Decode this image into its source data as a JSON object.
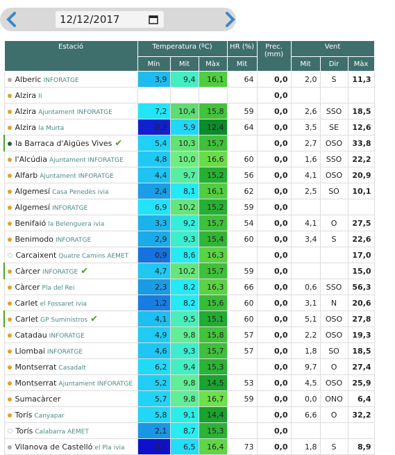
{
  "date": "12/12/2017",
  "headers": {
    "station": "Estació",
    "temperature": "Temperatura (ºC)",
    "hr": "HR (%)",
    "prec": "Prec. (mm)",
    "wind": "Vent"
  },
  "subheaders": {
    "t_min": "Mín",
    "t_mit": "Mit",
    "t_max": "Màx",
    "hr_mit": "Mit",
    "w_mit": "Mit",
    "w_dir": "Dir",
    "w_max": "Màx"
  },
  "rows": [
    {
      "station": "Alberic",
      "place": "INFORATGE",
      "dot": "#aaaaaa",
      "min": "3,9",
      "mit": "9,4",
      "max": "16,1",
      "hr": "64",
      "prec": "0,0",
      "wmit": "2,0",
      "dir": "S",
      "wmax": "11,3"
    },
    {
      "station": "Alzira",
      "place": "II",
      "dot": "#e0a030",
      "min": null,
      "mit": null,
      "max": null,
      "hr": null,
      "prec": "0,0",
      "wmit": null,
      "dir": null,
      "wmax": null
    },
    {
      "station": "Alzira",
      "place": "Ajuntament INFORATGE",
      "dot": "#e0a030",
      "min": "7,2",
      "mit": "10,4",
      "max": "15,8",
      "hr": "59",
      "prec": "0,0",
      "wmit": "2,6",
      "dir": "SSO",
      "wmax": "18,5"
    },
    {
      "station": "Alzira",
      "place": "la Murta",
      "dot": "#e0a030",
      "min": "-0,2",
      "mit": "5,9",
      "max": "12,4",
      "hr": "64",
      "prec": "0,0",
      "wmit": "3,5",
      "dir": "SE",
      "wmax": "12,6"
    },
    {
      "station": "la Barraca d'Aigües Vives",
      "place": null,
      "dot": "#1d5c55",
      "check": true,
      "min": "5,4",
      "mit": "10,3",
      "max": "15,7",
      "hr": null,
      "prec": "0,0",
      "wmit": "2,7",
      "dir": "OSO",
      "wmax": "33,8"
    },
    {
      "station": "l'Alcúdia",
      "place": "Ajuntament INFORATGE",
      "dot": "#e0a030",
      "min": "4,8",
      "mit": "10,0",
      "max": "16,6",
      "hr": "60",
      "prec": "0,0",
      "wmit": "1,6",
      "dir": "SSO",
      "wmax": "22,2"
    },
    {
      "station": "Alfarb",
      "place": "Ajuntament INFORATGE",
      "dot": "#e0a030",
      "min": "4,4",
      "mit": "9,7",
      "max": "15,2",
      "hr": "56",
      "prec": "0,0",
      "wmit": "4,1",
      "dir": "OSO",
      "wmax": "20,9"
    },
    {
      "station": "Algemesí",
      "place": "Casa Penedès ivia",
      "dot": "#e0a030",
      "min": "2,4",
      "mit": "8,1",
      "max": "16,1",
      "hr": "62",
      "prec": "0,0",
      "wmit": "2,5",
      "dir": "SO",
      "wmax": "10,1"
    },
    {
      "station": "Algemesí",
      "place": "INFORATGE",
      "dot": "#e0a030",
      "min": "6,9",
      "mit": "10,2",
      "max": "15,2",
      "hr": "59",
      "prec": "0,0",
      "wmit": null,
      "dir": null,
      "wmax": null
    },
    {
      "station": "Benifaió",
      "place": "la Belenguera ivia",
      "dot": "#e0a030",
      "min": "3,3",
      "mit": "9,2",
      "max": "15,7",
      "hr": "54",
      "prec": "0,0",
      "wmit": "4,1",
      "dir": "O",
      "wmax": "27,5"
    },
    {
      "station": "Benimodo",
      "place": "INFORATGE",
      "dot": "#e0a030",
      "min": "2,9",
      "mit": "9,3",
      "max": "15,4",
      "hr": "60",
      "prec": "0,0",
      "wmit": "3,4",
      "dir": "S",
      "wmax": "22,6"
    },
    {
      "station": "Carcaixent",
      "place": "Quatre Camins AEMET",
      "dot": "open",
      "min": "0,9",
      "mit": "8,6",
      "max": "16,3",
      "hr": null,
      "prec": "0,0",
      "wmit": null,
      "dir": null,
      "wmax": "17,0"
    },
    {
      "station": "Càrcer",
      "place": "INFORATGE",
      "dot": "#e0a030",
      "check": true,
      "min": "4,7",
      "mit": "10,2",
      "max": "15,7",
      "hr": "59",
      "prec": "0,0",
      "wmit": null,
      "dir": null,
      "wmax": "15,0"
    },
    {
      "station": "Càrcer",
      "place": "Pla del Rei",
      "dot": "#e0a030",
      "min": "2,3",
      "mit": "8,2",
      "max": "16,3",
      "hr": "66",
      "prec": "0,0",
      "wmit": "0,6",
      "dir": "SSO",
      "wmax": "56,3"
    },
    {
      "station": "Carlet",
      "place": "el Fossaret ivia",
      "dot": "#e0a030",
      "min": "1,2",
      "mit": "8,2",
      "max": "15,6",
      "hr": "60",
      "prec": "0,0",
      "wmit": "3,1",
      "dir": "N",
      "wmax": "20,6"
    },
    {
      "station": "Carlet",
      "place": "GP Suministros",
      "dot": "#e0a030",
      "check": true,
      "min": "4,1",
      "mit": "9,5",
      "max": "15,1",
      "hr": "60",
      "prec": "0,0",
      "wmit": "5,1",
      "dir": "OSO",
      "wmax": "27,8"
    },
    {
      "station": "Catadau",
      "place": "INFORATGE",
      "dot": "#e0a030",
      "min": "4,9",
      "mit": "9,8",
      "max": "15,8",
      "hr": "57",
      "prec": "0,0",
      "wmit": "2,2",
      "dir": "OSO",
      "wmax": "19,3"
    },
    {
      "station": "Llombai",
      "place": "INFORATGE",
      "dot": "#e0a030",
      "min": "4,6",
      "mit": "9,3",
      "max": "15,7",
      "hr": "57",
      "prec": "0,0",
      "wmit": "1,8",
      "dir": "SO",
      "wmax": "18,5"
    },
    {
      "station": "Montserrat",
      "place": "Casadalt",
      "dot": "#e0a030",
      "min": "6,2",
      "mit": "9,4",
      "max": "15,3",
      "hr": null,
      "prec": "0,0",
      "wmit": "9,7",
      "dir": "O",
      "wmax": "27,4"
    },
    {
      "station": "Montserrat",
      "place": "Ajuntament INFORATGE",
      "dot": "#e0a030",
      "min": "5,2",
      "mit": "9,8",
      "max": "14,5",
      "hr": "53",
      "prec": "0,0",
      "wmit": "4,5",
      "dir": "OSO",
      "wmax": "25,9"
    },
    {
      "station": "Sumacàrcer",
      "place": null,
      "dot": "#e0a030",
      "min": "5,7",
      "mit": "9,8",
      "max": "16,7",
      "hr": "59",
      "prec": "0,0",
      "wmit": "0,0",
      "dir": "ONO",
      "wmax": "6,4"
    },
    {
      "station": "Torís",
      "place": "Canyapar",
      "dot": "#e0a030",
      "min": "5,8",
      "mit": "9,1",
      "max": "14,4",
      "hr": null,
      "prec": "0,0",
      "wmit": "6,6",
      "dir": "O",
      "wmax": "32,2"
    },
    {
      "station": "Torís",
      "place": "Calabarra AEMET",
      "dot": "open",
      "min": "2,1",
      "mit": "8,7",
      "max": "15,3",
      "hr": null,
      "prec": "0,0",
      "wmit": null,
      "dir": null,
      "wmax": null
    },
    {
      "station": "Vilanova de Castelló",
      "place": "el Pla ivia",
      "dot": "#aaaaaa",
      "min": "-0,4",
      "mit": "6,5",
      "max": "16,4",
      "hr": "73",
      "prec": "0,0",
      "wmit": "1,8",
      "dir": "S",
      "wmax": "8,9"
    }
  ]
}
